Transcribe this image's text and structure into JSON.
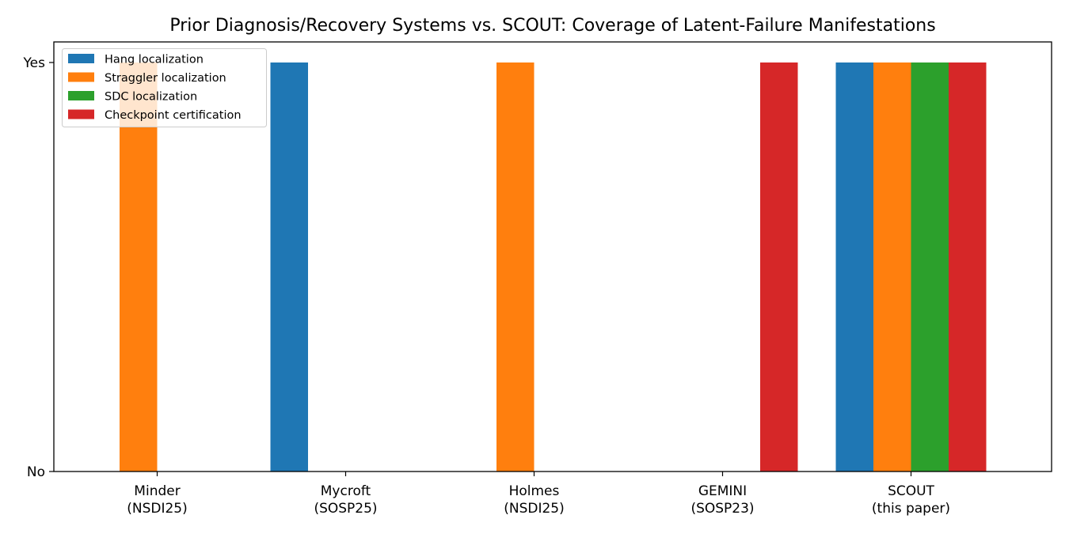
{
  "chart_data": {
    "type": "bar",
    "title": "Prior Diagnosis/Recovery Systems vs. SCOUT: Coverage of Latent-Failure Manifestations",
    "xlabel": "",
    "ylabel": "",
    "categories": [
      [
        "Minder",
        "(NSDI25)"
      ],
      [
        "Mycroft",
        "(SOSP25)"
      ],
      [
        "Holmes",
        "(NSDI25)"
      ],
      [
        "GEMINI",
        "(SOSP23)"
      ],
      [
        "SCOUT",
        "(this paper)"
      ]
    ],
    "ylim": [
      0,
      1
    ],
    "yticks": [
      {
        "value": 0,
        "label": "No"
      },
      {
        "value": 1,
        "label": "Yes"
      }
    ],
    "series": [
      {
        "name": "Hang localization",
        "color": "#1f77b4",
        "values": [
          0,
          1,
          0,
          0,
          1
        ]
      },
      {
        "name": "Straggler localization",
        "color": "#ff7f0e",
        "values": [
          1,
          0,
          1,
          0,
          1
        ]
      },
      {
        "name": "SDC localization",
        "color": "#2ca02c",
        "values": [
          0,
          0,
          0,
          0,
          1
        ]
      },
      {
        "name": "Checkpoint certification",
        "color": "#d62728",
        "values": [
          0,
          0,
          0,
          1,
          1
        ]
      }
    ],
    "grid": false,
    "legend_position": "top-left"
  }
}
